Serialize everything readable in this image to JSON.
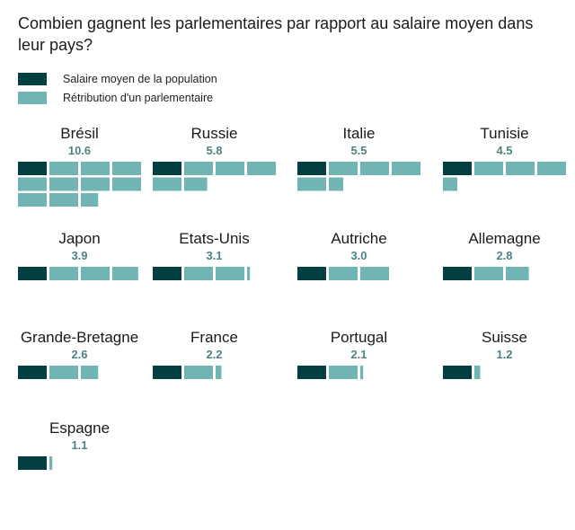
{
  "title": "Combien gagnent les parlementaires par rapport au salaire moyen dans leur pays?",
  "colors": {
    "average_salary": "#033f40",
    "mp_pay": "#70b4b3",
    "value_text": "#4e8383"
  },
  "legend": [
    {
      "label": "Salaire moyen de la population",
      "series": "average_salary"
    },
    {
      "label": "Rétribution d'un parlementaire",
      "series": "mp_pay"
    }
  ],
  "chart_data": {
    "type": "waffle",
    "title": "Combien gagnent les parlementaires par rapport au salaire moyen dans leur pays?",
    "unit_description": "Each block = one average salary; first block dark = average salary, remaining light blocks = additional multiples of MP pay",
    "blocks_per_row": 4,
    "legend_placement": "top-left",
    "series": [
      {
        "name": "Salaire moyen de la population",
        "key": "average_salary"
      },
      {
        "name": "Rétribution d'un parlementaire",
        "key": "mp_pay"
      }
    ],
    "categories": [
      "Brésil",
      "Russie",
      "Italie",
      "Tunisie",
      "Japon",
      "Etats-Unis",
      "Autriche",
      "Allemagne",
      "Grande-Bretagne",
      "France",
      "Portugal",
      "Suisse",
      "Espagne"
    ],
    "values": [
      10.6,
      5.8,
      5.5,
      4.5,
      3.9,
      3.1,
      3.0,
      2.8,
      2.6,
      2.2,
      2.1,
      1.2,
      1.1
    ],
    "value_labels": [
      "10.6",
      "5.8",
      "5.5",
      "4.5",
      "3.9",
      "3.1",
      "3.0",
      "2.8",
      "2.6",
      "2.2",
      "2.1",
      "1.2",
      "1.1"
    ]
  }
}
